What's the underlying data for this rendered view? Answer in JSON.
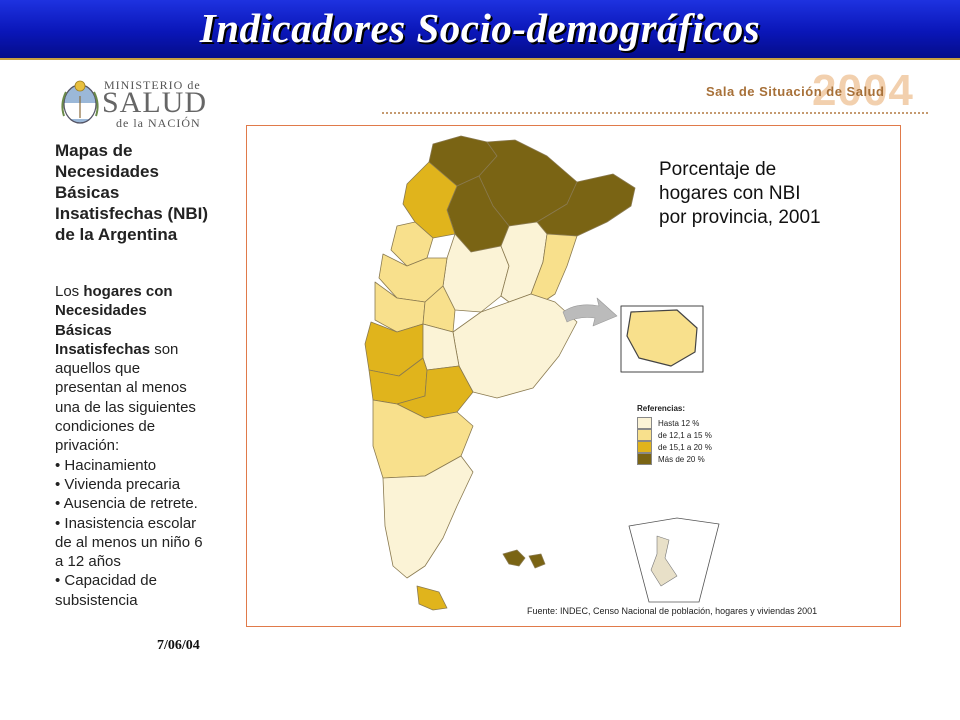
{
  "slide": {
    "title": "Indicadores Socio-demográficos",
    "date": "7/06/04"
  },
  "logo": {
    "line1": "MINISTERIO de",
    "line2": "SALUD",
    "line3": "de la NACIÓN"
  },
  "banner": {
    "text": "Sala de Situación de Salud",
    "year": "2004"
  },
  "sidebar": {
    "heading_lines": [
      "Mapas de",
      "Necesidades",
      "Básicas",
      "Insatisfechas (NBI)",
      "de la Argentina"
    ],
    "intro_prefix": "Los ",
    "intro_bold": [
      "hogares con",
      "Necesidades",
      "Básicas",
      "Insatisfechas"
    ],
    "intro_suffix": " son",
    "body_lines": [
      "aquellos que",
      "presentan al menos",
      "una de las siguientes",
      "condiciones de",
      "privación:"
    ],
    "bullets": [
      "• Hacinamiento",
      "• Vivienda precaria",
      "• Ausencia de retrete.",
      "• Inasistencia escolar",
      "de al menos un niño 6",
      "a 12 años",
      "• Capacidad de",
      "subsistencia"
    ]
  },
  "map": {
    "title_lines": [
      "Porcentaje de",
      "hogares con NBI",
      "por provincia, 2001"
    ],
    "source": "Fuente: INDEC, Censo Nacional de población, hogares y viviendas 2001",
    "legend": {
      "title": "Referencias:",
      "items": [
        {
          "label": "Hasta 12 %",
          "color": "#fbf3d6"
        },
        {
          "label": "de 12,1 a 15 %",
          "color": "#f8e08c"
        },
        {
          "label": "de 15,1 a 20 %",
          "color": "#e0b41c"
        },
        {
          "label": "Más de 20 %",
          "color": "#7a6414"
        }
      ]
    }
  },
  "colors": {
    "title_bar": "#0a16b8",
    "map_border": "#e07a4a",
    "class_1": "#fbf3d6",
    "class_2": "#f8e08c",
    "class_3": "#e0b41c",
    "class_4": "#7a6414"
  }
}
